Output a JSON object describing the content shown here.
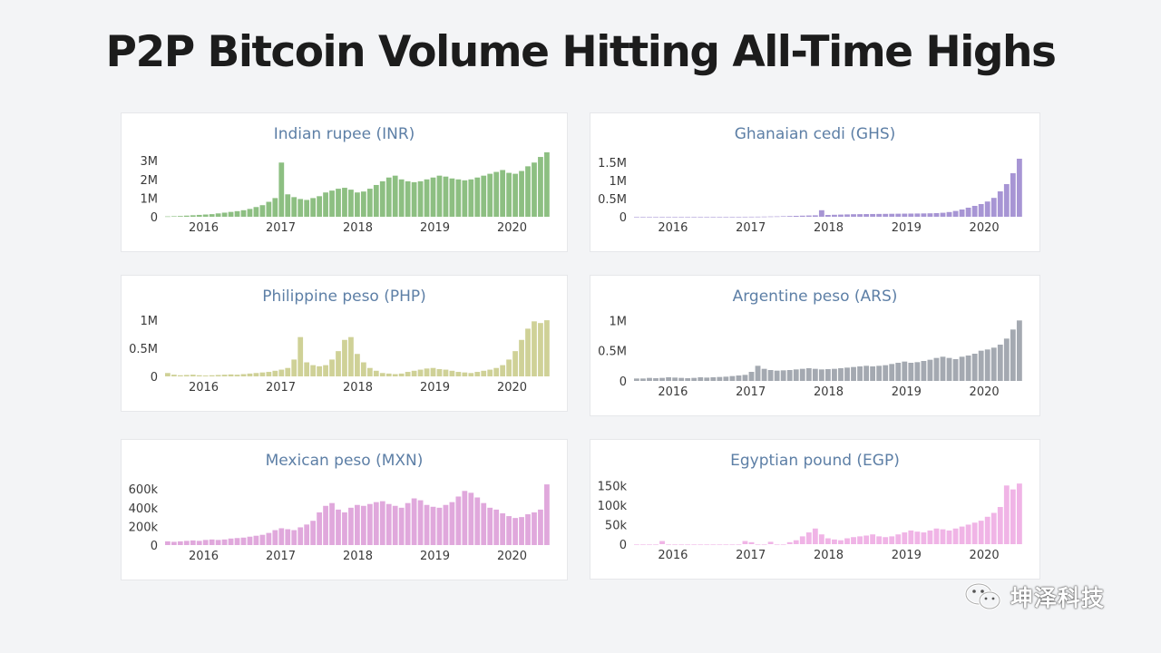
{
  "page_title": "P2P Bitcoin Volume Hitting All-Time Highs",
  "watermark": {
    "text": "坤泽科技",
    "icon": "wechat-icon"
  },
  "chart_data": [
    {
      "type": "bar",
      "title": "Indian rupee (INR)",
      "color": "#8dbf82",
      "x_ticks": [
        "2016",
        "2017",
        "2018",
        "2019",
        "2020"
      ],
      "y_ticks": [
        "0",
        "1M",
        "2M",
        "3M"
      ],
      "y_tick_values": [
        0,
        1000000,
        2000000,
        3000000
      ],
      "ylim": [
        0,
        3300000
      ],
      "x_range": [
        "2015-07",
        "2020-07"
      ],
      "series": [
        {
          "values": [
            20000,
            30000,
            40000,
            60000,
            80000,
            100000,
            120000,
            140000,
            180000,
            220000,
            260000,
            300000,
            350000,
            420000,
            520000,
            620000,
            800000,
            1000000,
            2900000,
            1200000,
            1050000,
            950000,
            900000,
            1000000,
            1100000,
            1300000,
            1400000,
            1500000,
            1550000,
            1450000,
            1300000,
            1350000,
            1500000,
            1700000,
            1900000,
            2100000,
            2200000,
            2000000,
            1900000,
            1850000,
            1900000,
            2000000,
            2100000,
            2200000,
            2150000,
            2050000,
            2000000,
            1950000,
            2000000,
            2100000,
            2200000,
            2300000,
            2400000,
            2500000,
            2350000,
            2300000,
            2450000,
            2700000,
            2900000,
            3200000,
            3450000
          ]
        }
      ]
    },
    {
      "type": "bar",
      "title": "Ghanaian cedi (GHS)",
      "color": "#a795d4",
      "x_ticks": [
        "2016",
        "2017",
        "2018",
        "2019",
        "2020"
      ],
      "y_ticks": [
        "0",
        "0.5M",
        "1M",
        "1.5M"
      ],
      "y_tick_values": [
        0,
        500000,
        1000000,
        1500000
      ],
      "ylim": [
        0,
        1700000
      ],
      "x_range": [
        "2015-07",
        "2020-07"
      ],
      "series": [
        {
          "values": [
            0,
            0,
            0,
            0,
            0,
            0,
            0,
            0,
            0,
            0,
            0,
            0,
            0,
            0,
            0,
            0,
            0,
            1000,
            2000,
            3000,
            5000,
            8000,
            10000,
            15000,
            20000,
            25000,
            30000,
            35000,
            40000,
            180000,
            50000,
            55000,
            60000,
            65000,
            70000,
            72000,
            74000,
            76000,
            78000,
            80000,
            82000,
            84000,
            86000,
            88000,
            90000,
            92000,
            95000,
            100000,
            110000,
            130000,
            160000,
            200000,
            250000,
            300000,
            350000,
            420000,
            520000,
            700000,
            900000,
            1200000,
            1600000
          ]
        }
      ]
    },
    {
      "type": "bar",
      "title": "Philippine peso (PHP)",
      "color": "#cfd197",
      "x_ticks": [
        "2016",
        "2017",
        "2018",
        "2019",
        "2020"
      ],
      "y_ticks": [
        "0",
        "0.5M",
        "1M"
      ],
      "y_tick_values": [
        0,
        500000,
        1000000
      ],
      "ylim": [
        0,
        1050000
      ],
      "x_range": [
        "2015-07",
        "2020-07"
      ],
      "series": [
        {
          "values": [
            60000,
            30000,
            20000,
            25000,
            30000,
            20000,
            15000,
            20000,
            25000,
            30000,
            35000,
            30000,
            40000,
            50000,
            60000,
            70000,
            80000,
            100000,
            120000,
            150000,
            300000,
            700000,
            250000,
            200000,
            180000,
            200000,
            300000,
            450000,
            650000,
            700000,
            400000,
            250000,
            150000,
            100000,
            60000,
            50000,
            40000,
            50000,
            80000,
            100000,
            120000,
            140000,
            150000,
            130000,
            120000,
            100000,
            80000,
            70000,
            60000,
            80000,
            100000,
            120000,
            150000,
            200000,
            300000,
            450000,
            650000,
            850000,
            980000,
            950000,
            1000000
          ]
        }
      ]
    },
    {
      "type": "bar",
      "title": "Argentine peso (ARS)",
      "color": "#a4a9b1",
      "x_ticks": [
        "2016",
        "2017",
        "2018",
        "2019",
        "2020"
      ],
      "y_ticks": [
        "0",
        "0.5M",
        "1M"
      ],
      "y_tick_values": [
        0,
        500000,
        1000000
      ],
      "ylim": [
        0,
        1050000
      ],
      "x_range": [
        "2015-07",
        "2020-07"
      ],
      "series": [
        {
          "values": [
            40000,
            40000,
            50000,
            45000,
            50000,
            60000,
            55000,
            50000,
            45000,
            50000,
            60000,
            55000,
            60000,
            65000,
            70000,
            80000,
            90000,
            100000,
            150000,
            250000,
            200000,
            180000,
            170000,
            175000,
            180000,
            190000,
            200000,
            210000,
            200000,
            190000,
            195000,
            200000,
            210000,
            220000,
            230000,
            240000,
            250000,
            240000,
            250000,
            260000,
            280000,
            300000,
            320000,
            300000,
            310000,
            330000,
            350000,
            380000,
            400000,
            380000,
            360000,
            400000,
            420000,
            450000,
            500000,
            520000,
            550000,
            600000,
            700000,
            850000,
            1000000
          ]
        }
      ]
    },
    {
      "type": "bar",
      "title": "Mexican peso (MXN)",
      "color": "#e0a8dc",
      "x_ticks": [
        "2016",
        "2017",
        "2018",
        "2019",
        "2020"
      ],
      "y_ticks": [
        "0",
        "200k",
        "400k",
        "600k"
      ],
      "y_tick_values": [
        0,
        200000,
        400000,
        600000
      ],
      "ylim": [
        0,
        680000
      ],
      "x_range": [
        "2015-07",
        "2020-07"
      ],
      "series": [
        {
          "values": [
            40000,
            35000,
            40000,
            45000,
            50000,
            45000,
            55000,
            60000,
            55000,
            60000,
            70000,
            75000,
            80000,
            90000,
            100000,
            110000,
            130000,
            160000,
            180000,
            170000,
            160000,
            190000,
            220000,
            260000,
            350000,
            420000,
            450000,
            380000,
            350000,
            400000,
            430000,
            420000,
            440000,
            460000,
            470000,
            440000,
            420000,
            400000,
            450000,
            500000,
            480000,
            430000,
            410000,
            400000,
            430000,
            460000,
            520000,
            580000,
            560000,
            510000,
            450000,
            400000,
            380000,
            340000,
            310000,
            290000,
            300000,
            330000,
            350000,
            380000,
            650000
          ]
        }
      ]
    },
    {
      "type": "bar",
      "title": "Egyptian pound (EGP)",
      "color": "#f0b4e6",
      "x_ticks": [
        "2016",
        "2017",
        "2018",
        "2019",
        "2020"
      ],
      "y_ticks": [
        "0",
        "50k",
        "100k",
        "150k"
      ],
      "y_tick_values": [
        0,
        50000,
        100000,
        150000
      ],
      "ylim": [
        0,
        160000
      ],
      "x_range": [
        "2015-07",
        "2020-07"
      ],
      "series": [
        {
          "values": [
            0,
            0,
            0,
            0,
            8000,
            0,
            0,
            0,
            0,
            0,
            0,
            0,
            0,
            0,
            0,
            0,
            0,
            8000,
            5000,
            0,
            0,
            6000,
            0,
            0,
            5000,
            10000,
            20000,
            30000,
            40000,
            25000,
            15000,
            12000,
            10000,
            15000,
            18000,
            20000,
            22000,
            25000,
            20000,
            18000,
            20000,
            25000,
            30000,
            35000,
            32000,
            30000,
            35000,
            40000,
            38000,
            35000,
            40000,
            45000,
            50000,
            55000,
            60000,
            70000,
            80000,
            95000,
            150000,
            140000,
            155000
          ]
        }
      ]
    }
  ]
}
